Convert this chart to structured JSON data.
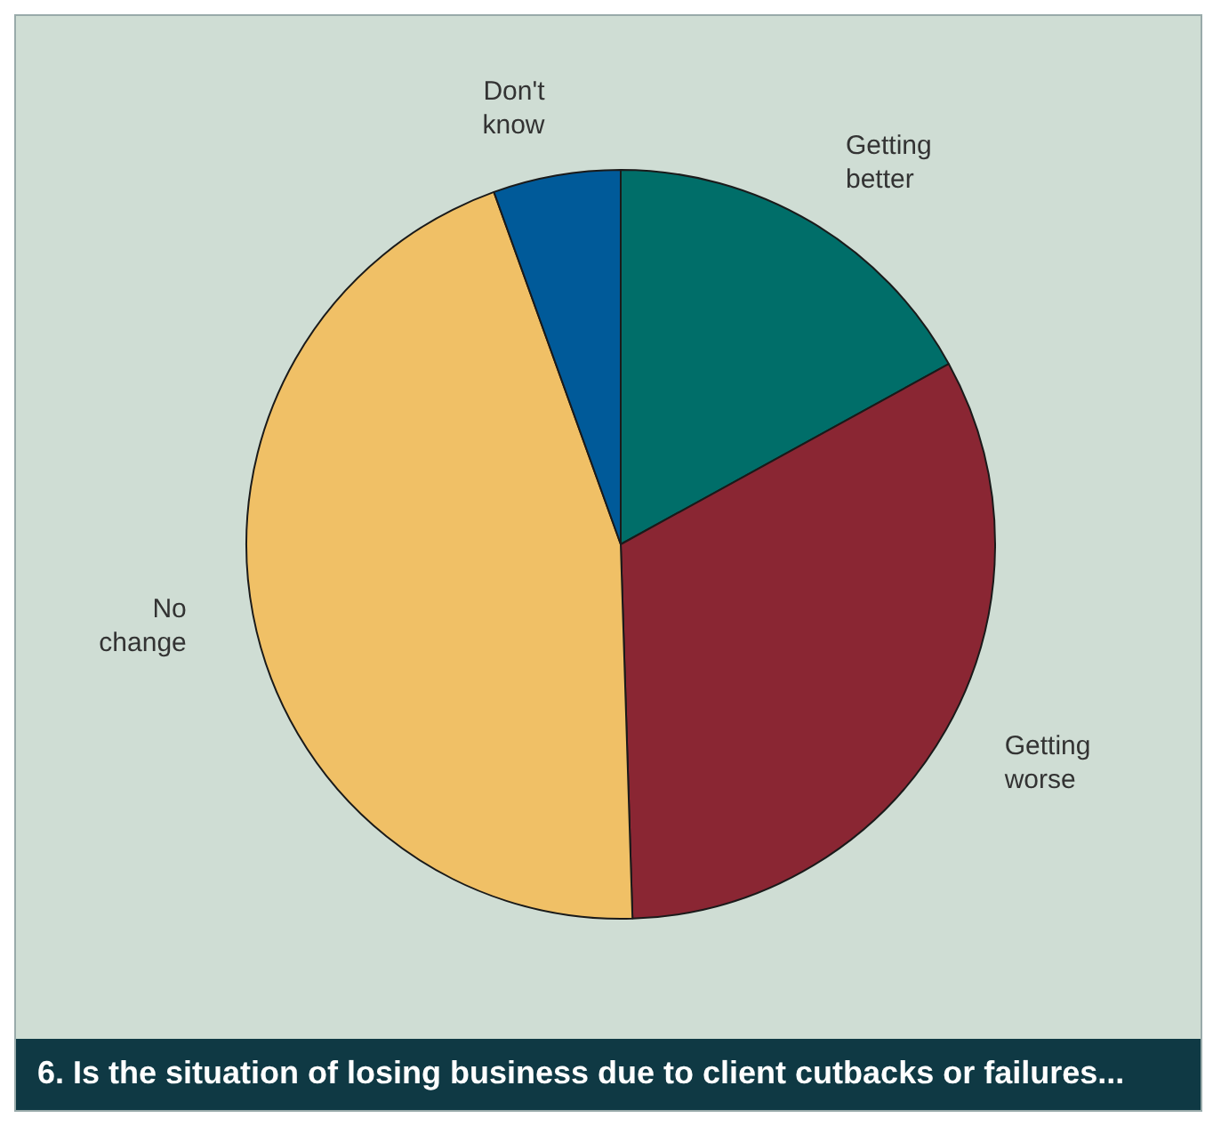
{
  "chart_data": {
    "type": "pie",
    "title": "6. Is the situation of losing business due to client cutbacks or failures...",
    "categories": [
      "Getting better",
      "Getting worse",
      "No change",
      "Don't know"
    ],
    "values": [
      17,
      32.5,
      45,
      5.5
    ],
    "colors": [
      "#006e69",
      "#8a2633",
      "#f0c066",
      "#005a99"
    ],
    "legend": false
  }
}
